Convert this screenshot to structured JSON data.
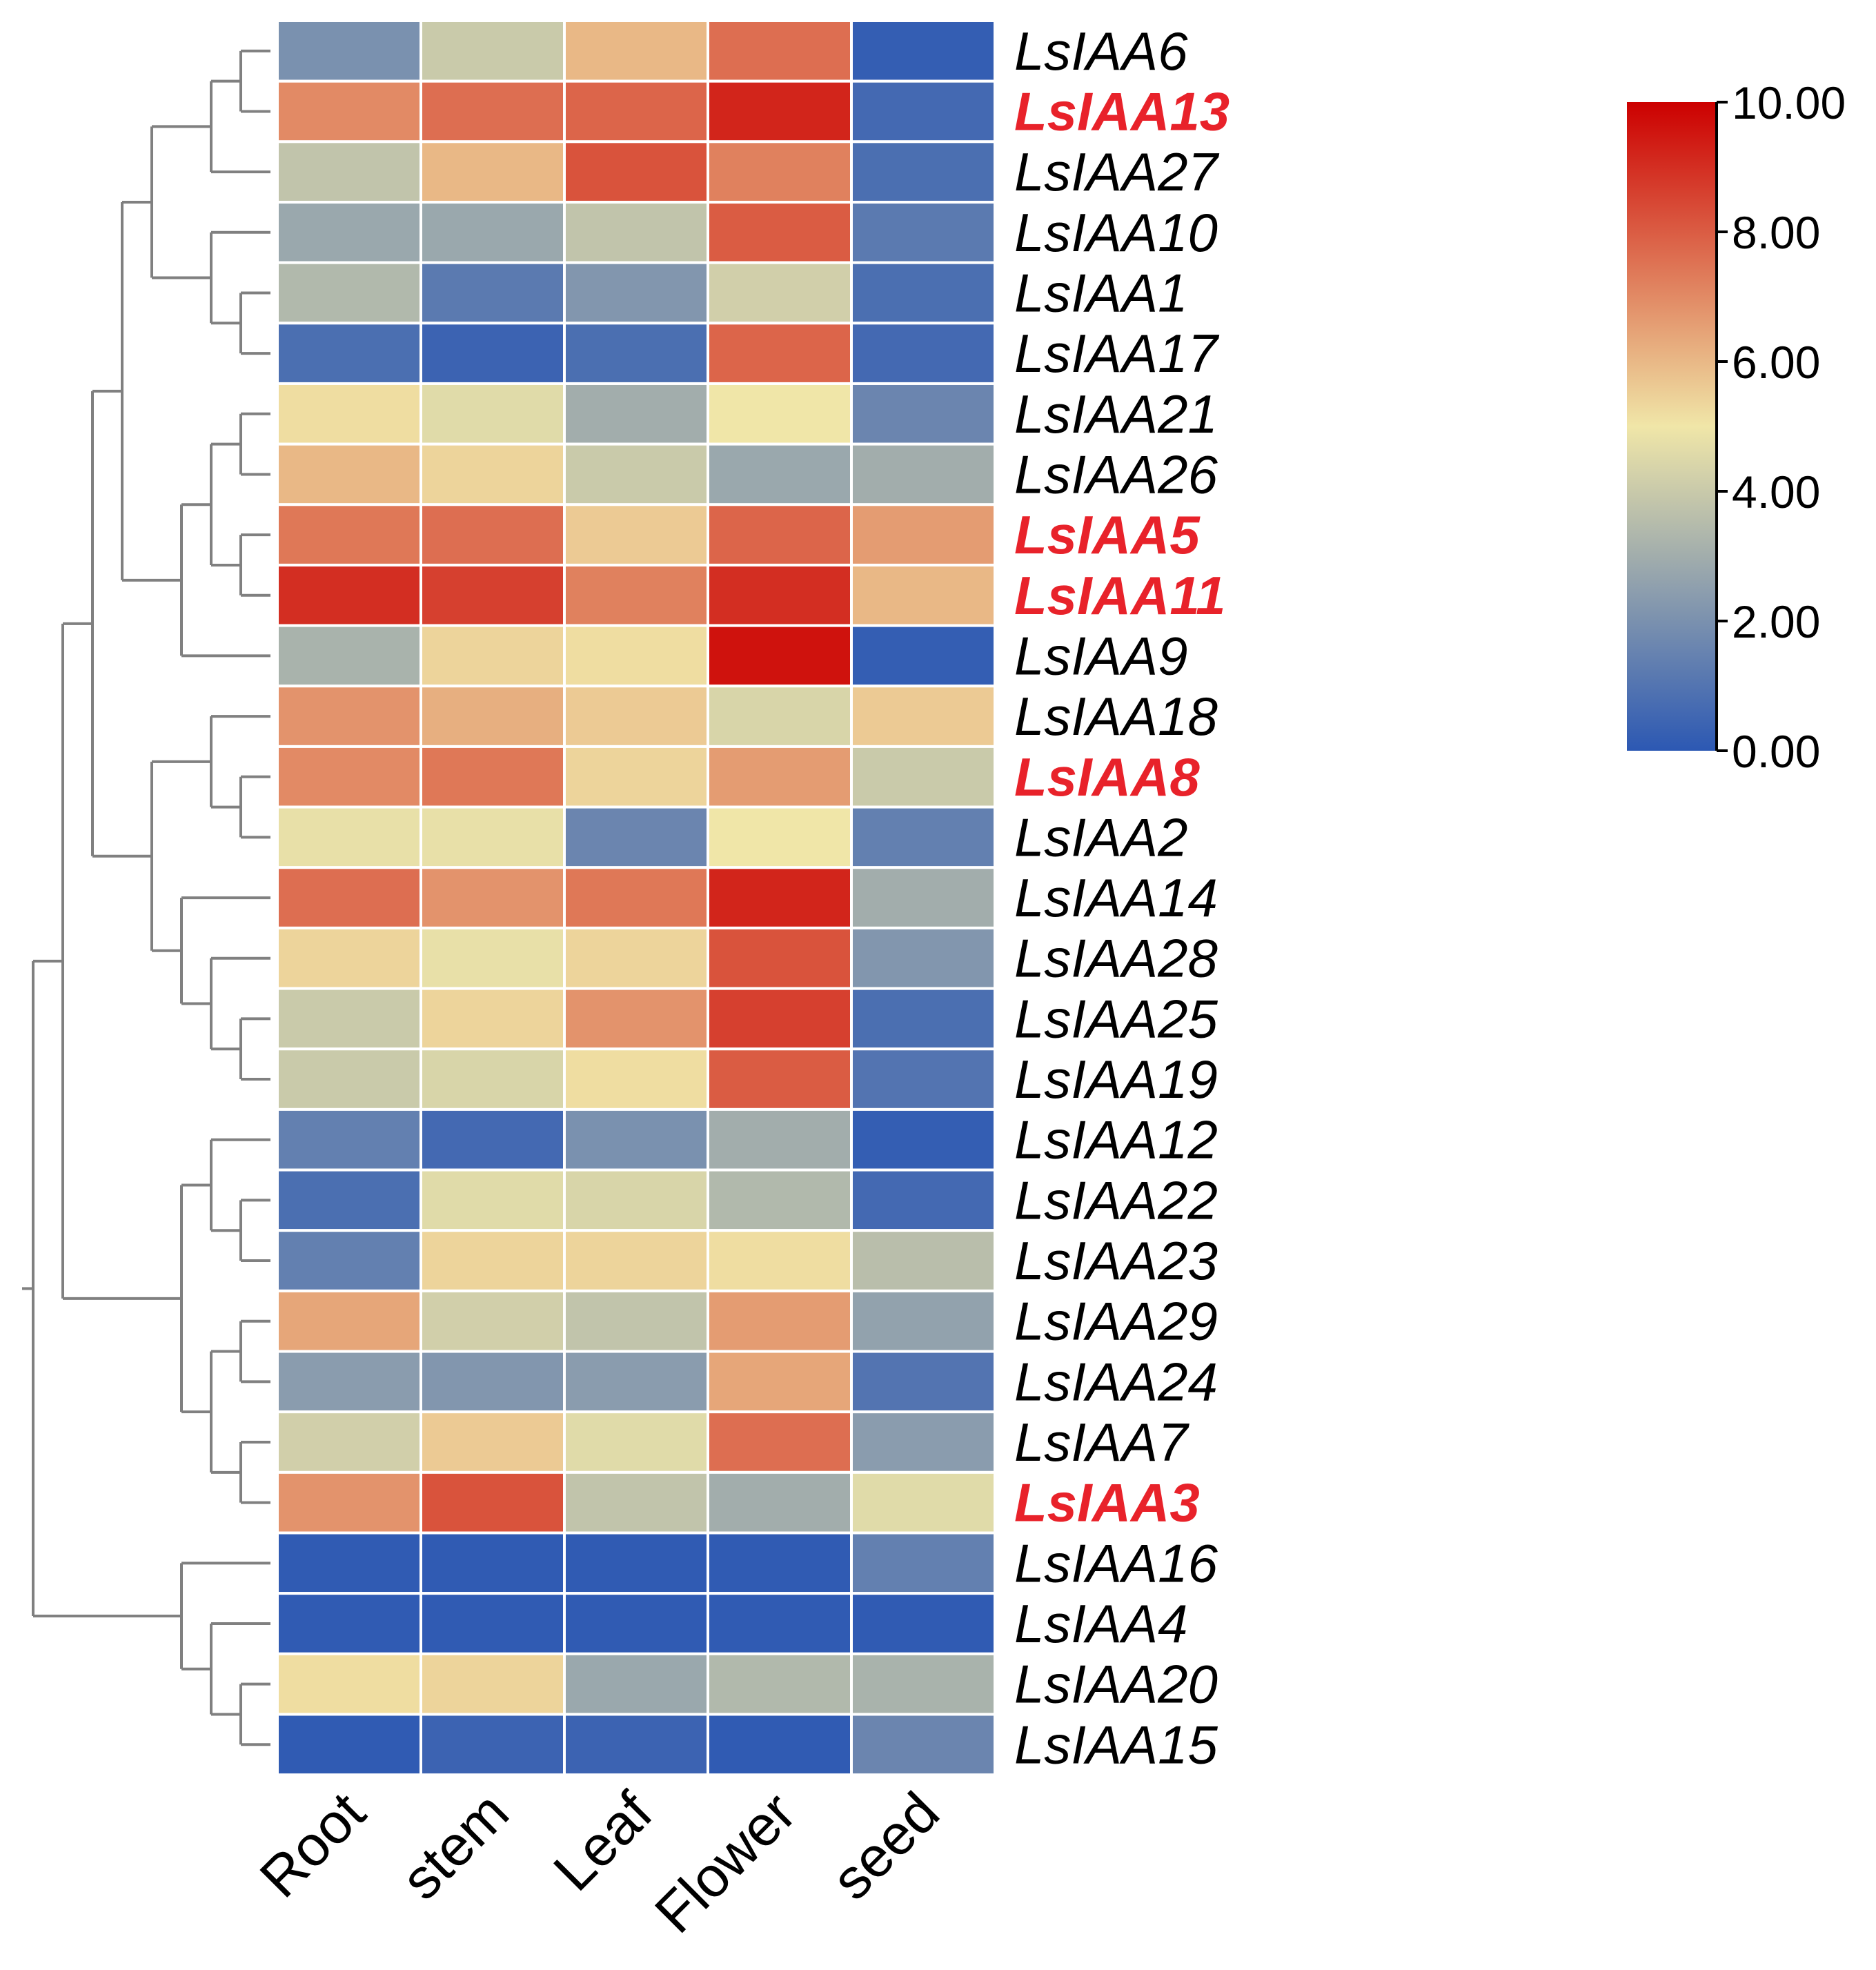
{
  "chart_data": {
    "type": "heatmap",
    "title": "",
    "columns": [
      "Root",
      "stem",
      "Leaf",
      "Flower",
      "seed"
    ],
    "rows": [
      {
        "gene": "LsIAA6",
        "highlight": false,
        "values": [
          2.0,
          4.0,
          6.0,
          7.6,
          0.2
        ]
      },
      {
        "gene": "LsIAA13",
        "highlight": true,
        "values": [
          7.0,
          7.6,
          7.8,
          9.2,
          0.6
        ]
      },
      {
        "gene": "LsIAA27",
        "highlight": false,
        "values": [
          3.8,
          6.0,
          8.2,
          7.2,
          0.8
        ]
      },
      {
        "gene": "LsIAA10",
        "highlight": false,
        "values": [
          2.8,
          2.8,
          3.8,
          8.0,
          1.2
        ]
      },
      {
        "gene": "LsIAA1",
        "highlight": false,
        "values": [
          3.4,
          1.2,
          2.2,
          4.2,
          0.8
        ]
      },
      {
        "gene": "LsIAA17",
        "highlight": false,
        "values": [
          0.8,
          0.4,
          0.8,
          7.8,
          0.6
        ]
      },
      {
        "gene": "LsIAA21",
        "highlight": false,
        "values": [
          5.2,
          4.6,
          3.0,
          5.0,
          1.6
        ]
      },
      {
        "gene": "LsIAA26",
        "highlight": false,
        "values": [
          6.0,
          5.4,
          4.0,
          2.8,
          3.0
        ]
      },
      {
        "gene": "LsIAA5",
        "highlight": true,
        "values": [
          7.4,
          7.6,
          5.6,
          7.8,
          6.6
        ]
      },
      {
        "gene": "LsIAA11",
        "highlight": true,
        "values": [
          9.0,
          8.6,
          7.2,
          9.0,
          6.0
        ]
      },
      {
        "gene": "LsIAA9",
        "highlight": false,
        "values": [
          3.2,
          5.4,
          5.2,
          9.6,
          0.2
        ]
      },
      {
        "gene": "LsIAA18",
        "highlight": false,
        "values": [
          6.8,
          6.2,
          5.6,
          4.4,
          5.6
        ]
      },
      {
        "gene": "LsIAA8",
        "highlight": true,
        "values": [
          7.0,
          7.4,
          5.4,
          6.6,
          4.0
        ]
      },
      {
        "gene": "LsIAA2",
        "highlight": false,
        "values": [
          4.8,
          4.8,
          1.6,
          5.0,
          1.4
        ]
      },
      {
        "gene": "LsIAA14",
        "highlight": false,
        "values": [
          7.6,
          6.8,
          7.4,
          9.2,
          3.0
        ]
      },
      {
        "gene": "LsIAA28",
        "highlight": false,
        "values": [
          5.4,
          4.8,
          5.4,
          8.2,
          2.2
        ]
      },
      {
        "gene": "LsIAA25",
        "highlight": false,
        "values": [
          4.0,
          5.4,
          6.8,
          8.6,
          0.8
        ]
      },
      {
        "gene": "LsIAA19",
        "highlight": false,
        "values": [
          4.0,
          4.4,
          5.2,
          8.0,
          1.0
        ]
      },
      {
        "gene": "LsIAA12",
        "highlight": false,
        "values": [
          1.4,
          0.6,
          2.0,
          3.0,
          0.2
        ]
      },
      {
        "gene": "LsIAA22",
        "highlight": false,
        "values": [
          0.8,
          4.6,
          4.4,
          3.4,
          0.6
        ]
      },
      {
        "gene": "LsIAA23",
        "highlight": false,
        "values": [
          1.4,
          5.4,
          5.4,
          5.2,
          3.6
        ]
      },
      {
        "gene": "LsIAA29",
        "highlight": false,
        "values": [
          6.4,
          4.2,
          3.8,
          6.6,
          2.6
        ]
      },
      {
        "gene": "LsIAA24",
        "highlight": false,
        "values": [
          2.4,
          2.2,
          2.4,
          6.4,
          1.0
        ]
      },
      {
        "gene": "LsIAA7",
        "highlight": false,
        "values": [
          4.2,
          5.6,
          4.6,
          7.6,
          2.4
        ]
      },
      {
        "gene": "LsIAA3",
        "highlight": true,
        "values": [
          6.8,
          8.2,
          3.8,
          3.0,
          4.6
        ]
      },
      {
        "gene": "LsIAA16",
        "highlight": false,
        "values": [
          0.1,
          0.1,
          0.1,
          0.1,
          1.4
        ]
      },
      {
        "gene": "LsIAA4",
        "highlight": false,
        "values": [
          0.1,
          0.1,
          0.1,
          0.1,
          0.1
        ]
      },
      {
        "gene": "LsIAA20",
        "highlight": false,
        "values": [
          5.2,
          5.4,
          2.8,
          3.4,
          3.2
        ]
      },
      {
        "gene": "LsIAA15",
        "highlight": false,
        "values": [
          0.1,
          0.4,
          0.4,
          0.1,
          1.6
        ]
      }
    ],
    "colorbar": {
      "min": 0,
      "max": 10,
      "ticks": [
        "0.00",
        "2.00",
        "4.00",
        "6.00",
        "8.00",
        "10.00"
      ],
      "colors": [
        "#2c58b3",
        "#f0e6a8",
        "#cc0000"
      ],
      "placement": "right"
    },
    "dendrogram": {
      "side": "left",
      "tree": [
        [
          [
            [
              [
                [
                  [
                    0,
                    1
                  ],
                  2
                ],
                [
                  [
                    3,
                    [
                      4,
                      5
                    ]
                  ]
                ]
              ],
              [
                [
                  [
                    6,
                    7
                  ],
                  [
                    8,
                    9
                  ]
                ],
                10
              ]
            ],
            [
              [
                11,
                [
                  12,
                  13
                ]
              ],
              [
                14,
                [
                  15,
                  [
                    16,
                    17
                  ]
                ]
              ]
            ]
          ],
          [
            [
              18,
              [
                19,
                20
              ]
            ],
            [
              [
                21,
                22
              ],
              [
                23,
                24
              ]
            ]
          ]
        ],
        [
          25,
          [
            26,
            [
              27,
              28
            ]
          ]
        ]
      ]
    },
    "highlight_color": "#e8222a",
    "label_color": "#000000",
    "branch_color": "#808080"
  }
}
